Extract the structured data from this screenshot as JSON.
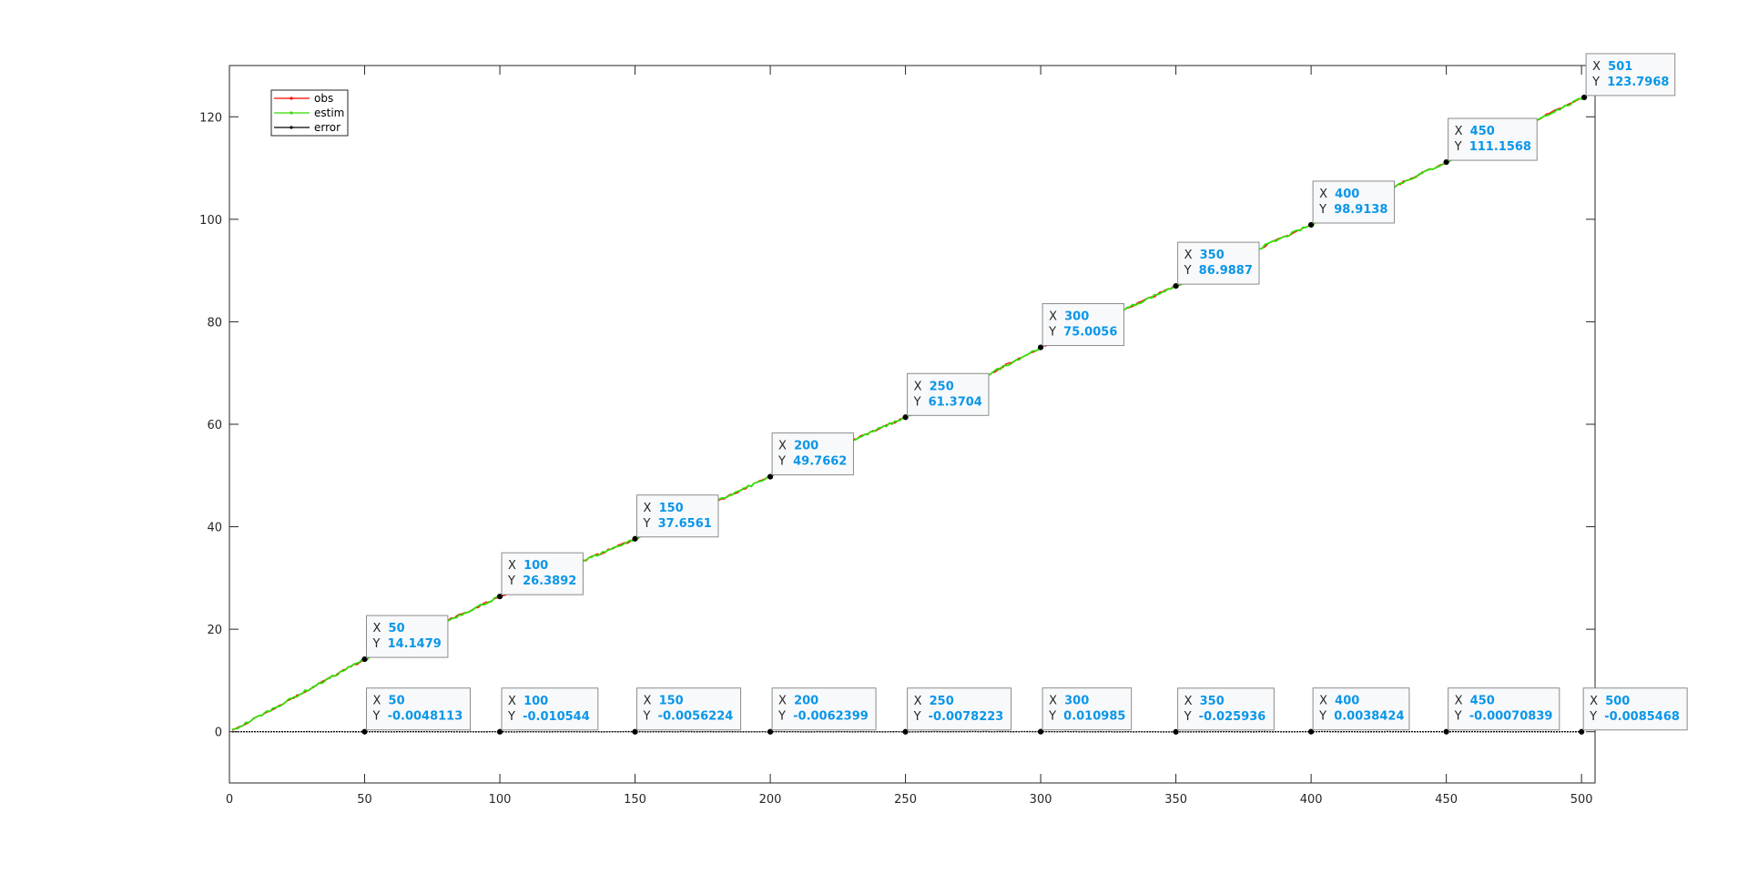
{
  "chart_data": {
    "type": "line",
    "title": "",
    "xlabel": "",
    "ylabel": "",
    "xlim": [
      0,
      505
    ],
    "ylim": [
      -10,
      130
    ],
    "xticks": [
      0,
      50,
      100,
      150,
      200,
      250,
      300,
      350,
      400,
      450,
      500
    ],
    "yticks": [
      0,
      20,
      40,
      60,
      80,
      100,
      120
    ],
    "grid": false,
    "legend_position": "top-left",
    "series": [
      {
        "name": "obs",
        "color": "#ff0000",
        "marker": "dot",
        "x": [
          1,
          50,
          100,
          150,
          200,
          250,
          300,
          350,
          400,
          450,
          501
        ],
        "values": [
          0.2,
          14.1479,
          26.3892,
          37.6561,
          49.7662,
          61.3704,
          75.0056,
          86.9887,
          98.9138,
          111.1568,
          123.7968
        ]
      },
      {
        "name": "estim",
        "color": "#33dd00",
        "marker": "dot",
        "x": [
          1,
          50,
          100,
          150,
          200,
          250,
          300,
          350,
          400,
          450,
          501
        ],
        "values": [
          0.2,
          14.1479,
          26.3892,
          37.6561,
          49.7662,
          61.3704,
          75.0056,
          86.9887,
          98.9138,
          111.1568,
          123.7968
        ]
      },
      {
        "name": "error",
        "color": "#000000",
        "marker": "dot",
        "x": [
          50,
          100,
          150,
          200,
          250,
          300,
          350,
          400,
          450,
          500
        ],
        "values": [
          -0.0048113,
          -0.010544,
          -0.0056224,
          -0.0062399,
          -0.0078223,
          0.010985,
          -0.025936,
          0.0038424,
          -0.00070839,
          -0.0085468
        ]
      }
    ],
    "datatips": [
      {
        "x": "50",
        "y": "14.1479"
      },
      {
        "x": "100",
        "y": "26.3892"
      },
      {
        "x": "150",
        "y": "37.6561"
      },
      {
        "x": "200",
        "y": "49.7662"
      },
      {
        "x": "250",
        "y": "61.3704"
      },
      {
        "x": "300",
        "y": "75.0056"
      },
      {
        "x": "350",
        "y": "86.9887"
      },
      {
        "x": "400",
        "y": "98.9138"
      },
      {
        "x": "450",
        "y": "111.1568"
      },
      {
        "x": "501",
        "y": "123.7968"
      },
      {
        "x": "50",
        "y": "-0.0048113"
      },
      {
        "x": "100",
        "y": "-0.010544"
      },
      {
        "x": "150",
        "y": "-0.0056224"
      },
      {
        "x": "200",
        "y": "-0.0062399"
      },
      {
        "x": "250",
        "y": "-0.0078223"
      },
      {
        "x": "300",
        "y": "0.010985"
      },
      {
        "x": "350",
        "y": "-0.025936"
      },
      {
        "x": "400",
        "y": "0.0038424"
      },
      {
        "x": "450",
        "y": "-0.00070839"
      },
      {
        "x": "500",
        "y": "-0.0085468"
      }
    ],
    "datatip_labels": {
      "x": "X",
      "y": "Y"
    },
    "colors": {
      "datatip_value": "#0b96e8",
      "datatip_key": "#262626",
      "axis": "#262626"
    }
  }
}
